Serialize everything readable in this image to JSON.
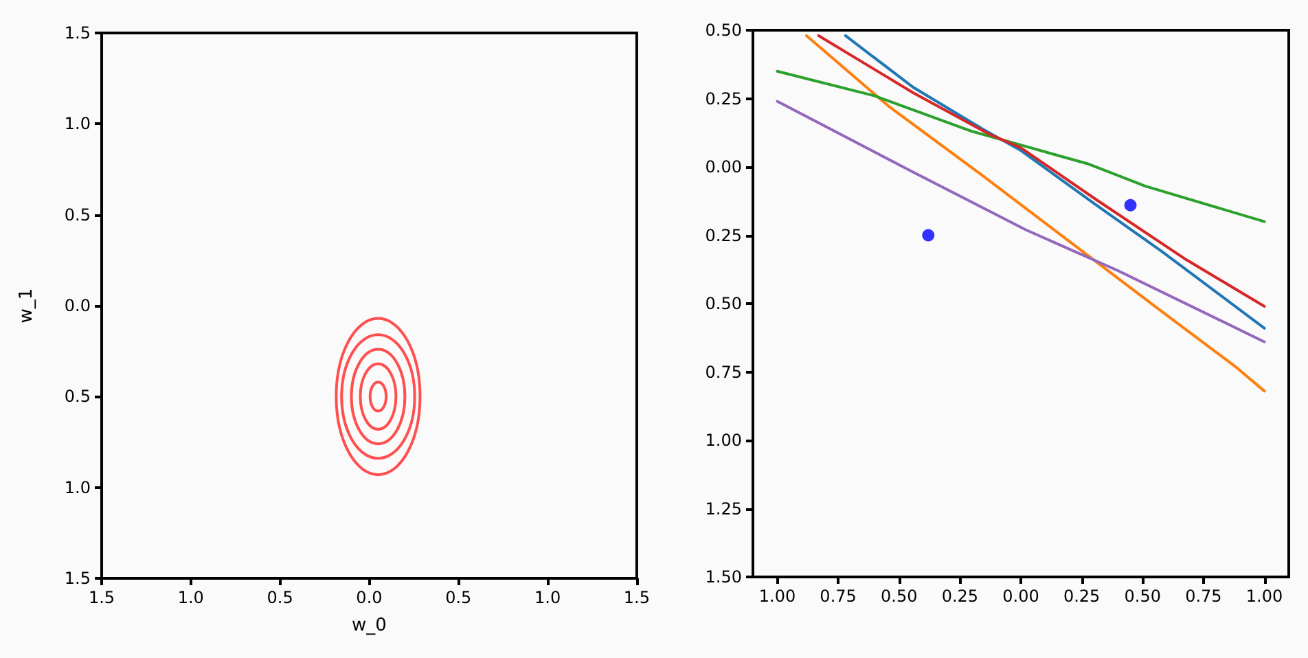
{
  "chart_data": [
    {
      "type": "line",
      "xlabel": "w_0",
      "ylabel": "w_1",
      "xlim": [
        -1.5,
        1.5
      ],
      "ylim": [
        -1.5,
        1.5
      ],
      "xticks": [
        {
          "value": -1.5,
          "label": "1.5"
        },
        {
          "value": -1.0,
          "label": "1.0"
        },
        {
          "value": -0.5,
          "label": "0.5"
        },
        {
          "value": 0.0,
          "label": "0.0"
        },
        {
          "value": 0.5,
          "label": "0.5"
        },
        {
          "value": 1.0,
          "label": "1.0"
        },
        {
          "value": 1.5,
          "label": "1.5"
        }
      ],
      "yticks": [
        {
          "value": -1.5,
          "label": "1.5"
        },
        {
          "value": -1.0,
          "label": "1.0"
        },
        {
          "value": -0.5,
          "label": "0.5"
        },
        {
          "value": 0.0,
          "label": "0.0"
        },
        {
          "value": 0.5,
          "label": "0.5"
        },
        {
          "value": 1.0,
          "label": "1.0"
        },
        {
          "value": 1.5,
          "label": "1.5"
        }
      ]
    },
    {
      "type": "line",
      "xlim": [
        -1.1,
        1.1
      ],
      "ylim": [
        -1.5,
        0.5
      ],
      "xticks": [
        {
          "value": -1.0,
          "label": "1.00"
        },
        {
          "value": -0.75,
          "label": "0.75"
        },
        {
          "value": -0.5,
          "label": "0.50"
        },
        {
          "value": -0.25,
          "label": "0.25"
        },
        {
          "value": 0.0,
          "label": "0.00"
        },
        {
          "value": 0.25,
          "label": "0.25"
        },
        {
          "value": 0.5,
          "label": "0.50"
        },
        {
          "value": 0.75,
          "label": "0.75"
        },
        {
          "value": 1.0,
          "label": "1.00"
        }
      ],
      "yticks": [
        {
          "value": -1.5,
          "label": "1.50"
        },
        {
          "value": -1.25,
          "label": "1.25"
        },
        {
          "value": -1.0,
          "label": "1.00"
        },
        {
          "value": -0.75,
          "label": "0.75"
        },
        {
          "value": -0.5,
          "label": "0.50"
        },
        {
          "value": -0.25,
          "label": "0.25"
        },
        {
          "value": 0.0,
          "label": "0.00"
        },
        {
          "value": 0.25,
          "label": "0.25"
        },
        {
          "value": 0.5,
          "label": "0.50"
        }
      ],
      "series": [
        {
          "color": "#1f77b4",
          "x": [
            -0.72,
            -0.44,
            -0.16,
            0.0,
            0.31,
            0.58,
            1.0
          ],
          "values": [
            0.48,
            0.29,
            0.14,
            0.06,
            -0.14,
            -0.31,
            -0.59
          ]
        },
        {
          "color": "#ff7f0e",
          "x": [
            -0.88,
            -0.54,
            -0.16,
            0.21,
            0.58,
            0.88,
            1.0
          ],
          "values": [
            0.48,
            0.22,
            -0.03,
            -0.28,
            -0.53,
            -0.73,
            -0.82
          ]
        },
        {
          "color": "#2ca02c",
          "x": [
            -1.0,
            -0.6,
            -0.2,
            0.0,
            0.28,
            0.51,
            1.0
          ],
          "values": [
            0.35,
            0.26,
            0.13,
            0.08,
            0.01,
            -0.07,
            -0.2
          ]
        },
        {
          "color": "#d62728",
          "x": [
            -0.83,
            -0.44,
            -0.13,
            0.0,
            0.31,
            0.68,
            1.0
          ],
          "values": [
            0.48,
            0.27,
            0.12,
            0.07,
            -0.12,
            -0.34,
            -0.51
          ]
        },
        {
          "color": "#9467bd",
          "x": [
            -1.0,
            -0.44,
            0.02,
            0.4,
            1.0
          ],
          "values": [
            0.24,
            -0.02,
            -0.23,
            -0.38,
            -0.64
          ]
        },
        {
          "type": "scatter",
          "marker": "circle",
          "color": "#0000ff",
          "x": [
            -0.38,
            0.45
          ],
          "values": [
            -0.25,
            -0.14
          ]
        }
      ]
    }
  ]
}
